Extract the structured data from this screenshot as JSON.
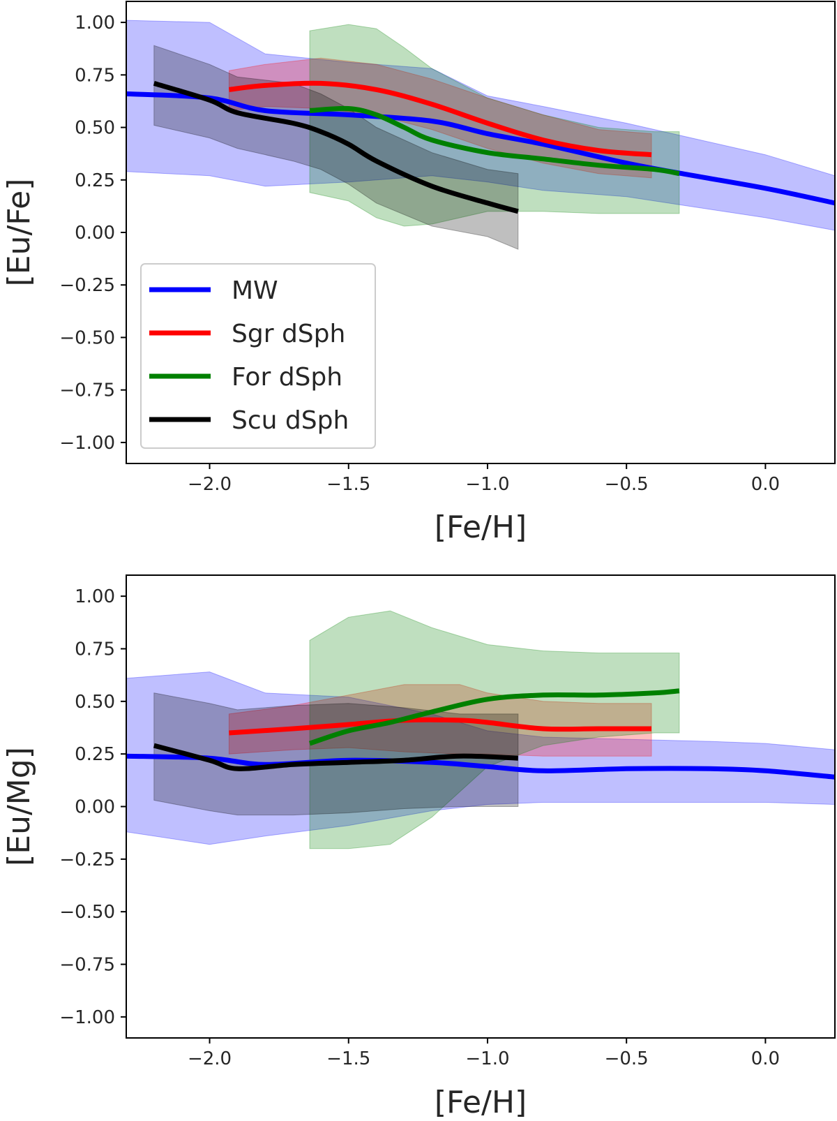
{
  "chart_data": [
    {
      "type": "line",
      "title": "",
      "xlabel": "[Fe/H]",
      "ylabel": "[Eu/Fe]",
      "xlim": [
        -2.3,
        0.25
      ],
      "ylim": [
        -1.1,
        1.1
      ],
      "xticks": [
        -2.0,
        -1.5,
        -1.0,
        -0.5,
        0.0
      ],
      "xtick_labels": [
        "−2.0",
        "−1.5",
        "−1.0",
        "−0.5",
        "0.0"
      ],
      "yticks": [
        1.0,
        0.75,
        0.5,
        0.25,
        0.0,
        -0.25,
        -0.5,
        -0.75,
        -1.0
      ],
      "ytick_labels": [
        "1.00",
        "0.75",
        "0.50",
        "0.25",
        "0.00",
        "−0.25",
        "−0.50",
        "−0.75",
        "−1.00"
      ],
      "legend": {
        "position": "lower-left",
        "entries": [
          "MW",
          "Sgr dSph",
          "For dSph",
          "Scu dSph"
        ]
      },
      "series": [
        {
          "name": "MW",
          "color": "#0000ff",
          "band_color": "#0000ff",
          "x": [
            -2.3,
            -2.0,
            -1.8,
            -1.5,
            -1.2,
            -1.0,
            -0.8,
            -0.5,
            -0.3,
            0.0,
            0.25
          ],
          "y": [
            0.66,
            0.64,
            0.58,
            0.56,
            0.53,
            0.47,
            0.42,
            0.33,
            0.28,
            0.21,
            0.14
          ],
          "upper": [
            1.01,
            1.0,
            0.85,
            0.81,
            0.78,
            0.65,
            0.6,
            0.52,
            0.46,
            0.37,
            0.27
          ],
          "lower": [
            0.29,
            0.27,
            0.22,
            0.24,
            0.27,
            0.24,
            0.2,
            0.17,
            0.13,
            0.07,
            0.01
          ]
        },
        {
          "name": "Sgr dSph",
          "color": "#ff0000",
          "band_color": "#ff0000",
          "x": [
            -1.93,
            -1.8,
            -1.6,
            -1.4,
            -1.2,
            -1.0,
            -0.8,
            -0.6,
            -0.41
          ],
          "y": [
            0.68,
            0.7,
            0.71,
            0.68,
            0.61,
            0.52,
            0.44,
            0.39,
            0.37
          ],
          "upper": [
            0.77,
            0.8,
            0.83,
            0.8,
            0.73,
            0.64,
            0.56,
            0.49,
            0.47
          ],
          "lower": [
            0.58,
            0.6,
            0.59,
            0.56,
            0.49,
            0.4,
            0.33,
            0.28,
            0.26
          ]
        },
        {
          "name": "For dSph",
          "color": "#008000",
          "band_color": "#008000",
          "x": [
            -1.64,
            -1.5,
            -1.4,
            -1.3,
            -1.2,
            -1.0,
            -0.8,
            -0.6,
            -0.4,
            -0.31
          ],
          "y": [
            0.58,
            0.59,
            0.56,
            0.5,
            0.44,
            0.38,
            0.35,
            0.32,
            0.3,
            0.28
          ],
          "upper": [
            0.96,
            0.99,
            0.97,
            0.88,
            0.78,
            0.64,
            0.56,
            0.5,
            0.48,
            0.48
          ],
          "lower": [
            0.19,
            0.15,
            0.07,
            0.03,
            0.04,
            0.1,
            0.1,
            0.09,
            0.09,
            0.09
          ]
        },
        {
          "name": "Scu dSph",
          "color": "#000000",
          "band_color": "#000000",
          "x": [
            -2.2,
            -2.0,
            -1.9,
            -1.7,
            -1.6,
            -1.5,
            -1.4,
            -1.2,
            -1.0,
            -0.89
          ],
          "y": [
            0.71,
            0.63,
            0.57,
            0.52,
            0.48,
            0.42,
            0.34,
            0.22,
            0.14,
            0.1
          ],
          "upper": [
            0.89,
            0.8,
            0.74,
            0.71,
            0.66,
            0.59,
            0.5,
            0.38,
            0.3,
            0.28
          ],
          "lower": [
            0.51,
            0.45,
            0.4,
            0.34,
            0.3,
            0.23,
            0.14,
            0.03,
            -0.02,
            -0.08
          ]
        }
      ]
    },
    {
      "type": "line",
      "title": "",
      "xlabel": "[Fe/H]",
      "ylabel": "[Eu/Mg]",
      "xlim": [
        -2.3,
        0.25
      ],
      "ylim": [
        -1.1,
        1.1
      ],
      "xticks": [
        -2.0,
        -1.5,
        -1.0,
        -0.5,
        0.0
      ],
      "xtick_labels": [
        "−2.0",
        "−1.5",
        "−1.0",
        "−0.5",
        "0.0"
      ],
      "yticks": [
        1.0,
        0.75,
        0.5,
        0.25,
        0.0,
        -0.25,
        -0.5,
        -0.75,
        -1.0
      ],
      "ytick_labels": [
        "1.00",
        "0.75",
        "0.50",
        "0.25",
        "0.00",
        "−0.25",
        "−0.50",
        "−0.75",
        "−1.00"
      ],
      "series": [
        {
          "name": "MW",
          "color": "#0000ff",
          "band_color": "#0000ff",
          "x": [
            -2.3,
            -2.0,
            -1.8,
            -1.5,
            -1.2,
            -1.0,
            -0.8,
            -0.5,
            -0.2,
            0.0,
            0.25
          ],
          "y": [
            0.24,
            0.23,
            0.2,
            0.22,
            0.21,
            0.19,
            0.17,
            0.18,
            0.18,
            0.17,
            0.14
          ],
          "upper": [
            0.61,
            0.64,
            0.54,
            0.52,
            0.44,
            0.36,
            0.33,
            0.32,
            0.31,
            0.3,
            0.27
          ],
          "lower": [
            -0.12,
            -0.18,
            -0.14,
            -0.09,
            -0.02,
            0.01,
            0.02,
            0.02,
            0.02,
            0.02,
            0.01
          ]
        },
        {
          "name": "Sgr dSph",
          "color": "#ff0000",
          "band_color": "#ff0000",
          "x": [
            -1.93,
            -1.7,
            -1.5,
            -1.3,
            -1.1,
            -1.0,
            -0.8,
            -0.6,
            -0.41
          ],
          "y": [
            0.35,
            0.37,
            0.39,
            0.41,
            0.41,
            0.4,
            0.37,
            0.37,
            0.37
          ],
          "upper": [
            0.44,
            0.48,
            0.53,
            0.58,
            0.58,
            0.54,
            0.5,
            0.49,
            0.49
          ],
          "lower": [
            0.25,
            0.27,
            0.28,
            0.26,
            0.25,
            0.25,
            0.24,
            0.24,
            0.24
          ]
        },
        {
          "name": "For dSph",
          "color": "#008000",
          "band_color": "#008000",
          "x": [
            -1.64,
            -1.5,
            -1.35,
            -1.2,
            -1.0,
            -0.8,
            -0.6,
            -0.4,
            -0.31
          ],
          "y": [
            0.3,
            0.36,
            0.4,
            0.45,
            0.51,
            0.53,
            0.53,
            0.54,
            0.55
          ],
          "upper": [
            0.79,
            0.9,
            0.93,
            0.85,
            0.77,
            0.74,
            0.73,
            0.73,
            0.73
          ],
          "lower": [
            -0.2,
            -0.2,
            -0.18,
            -0.05,
            0.19,
            0.29,
            0.33,
            0.35,
            0.35
          ]
        },
        {
          "name": "Scu dSph",
          "color": "#000000",
          "band_color": "#000000",
          "x": [
            -2.2,
            -2.0,
            -1.9,
            -1.7,
            -1.5,
            -1.3,
            -1.1,
            -0.89
          ],
          "y": [
            0.29,
            0.22,
            0.18,
            0.2,
            0.21,
            0.22,
            0.24,
            0.23
          ],
          "upper": [
            0.54,
            0.49,
            0.46,
            0.48,
            0.49,
            0.47,
            0.44,
            0.44
          ],
          "lower": [
            0.03,
            -0.02,
            -0.04,
            -0.04,
            -0.03,
            -0.01,
            0.0,
            0.0
          ]
        }
      ]
    }
  ]
}
